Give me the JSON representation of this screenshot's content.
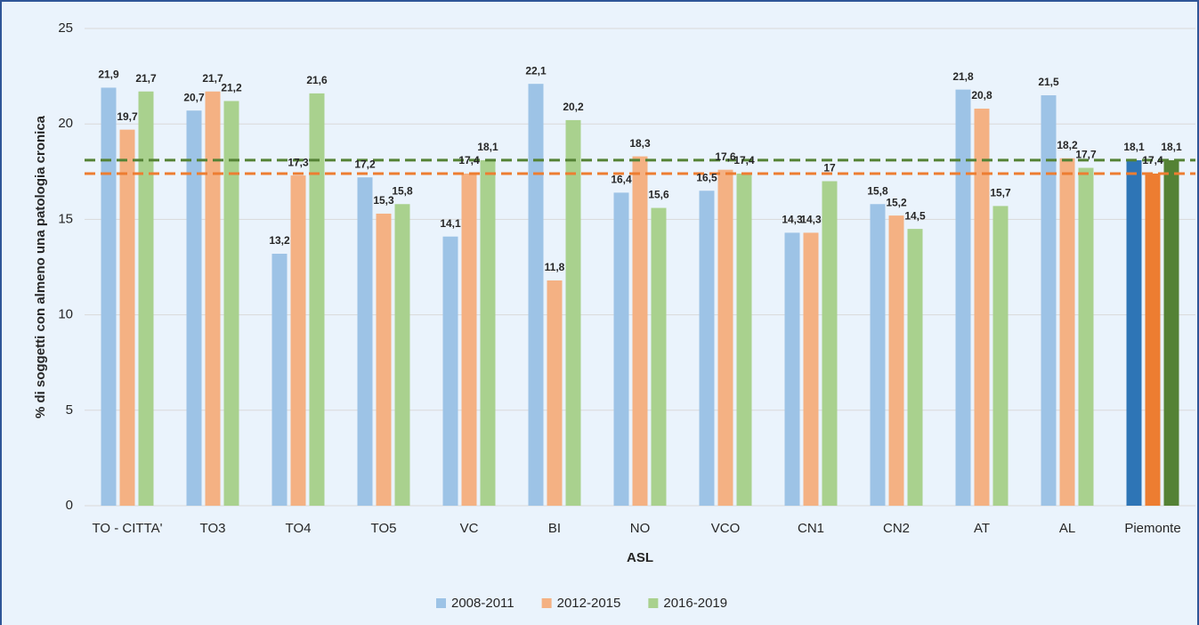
{
  "chart_data": {
    "type": "bar",
    "x_label": "ASL",
    "y_label": "% di soggetti con almeno una patologia cronica",
    "categories": [
      "TO - CITTA'",
      "TO3",
      "TO4",
      "TO5",
      "VC",
      "BI",
      "NO",
      "VCO",
      "CN1",
      "CN2",
      "AT",
      "AL",
      "Piemonte"
    ],
    "series": [
      {
        "name": "2008-2011",
        "color": "#9dc3e6",
        "colors": [
          "#9dc3e6",
          "#9dc3e6",
          "#9dc3e6",
          "#9dc3e6",
          "#9dc3e6",
          "#9dc3e6",
          "#9dc3e6",
          "#9dc3e6",
          "#9dc3e6",
          "#9dc3e6",
          "#9dc3e6",
          "#9dc3e6",
          "#2e75b6"
        ],
        "values": [
          21.9,
          20.7,
          13.2,
          17.2,
          14.1,
          22.1,
          16.4,
          16.5,
          14.3,
          15.8,
          21.8,
          21.5,
          18.1
        ],
        "value_labels": [
          "21,9",
          "20,7",
          "13,2",
          "17,2",
          "14,1",
          "22,1",
          "16,4",
          "16,5",
          "14,3",
          "15,8",
          "21,8",
          "21,5",
          "18,1"
        ]
      },
      {
        "name": "2012-2015",
        "color": "#f4b183",
        "colors": [
          "#f4b183",
          "#f4b183",
          "#f4b183",
          "#f4b183",
          "#f4b183",
          "#f4b183",
          "#f4b183",
          "#f4b183",
          "#f4b183",
          "#f4b183",
          "#f4b183",
          "#f4b183",
          "#ed7d31"
        ],
        "values": [
          19.7,
          21.7,
          17.3,
          15.3,
          17.4,
          11.8,
          18.3,
          17.6,
          14.3,
          15.2,
          20.8,
          18.2,
          17.4
        ],
        "value_labels": [
          "19,7",
          "21,7",
          "17,3",
          "15,3",
          "17,4",
          "11,8",
          "18,3",
          "17,6",
          "14,3",
          "15,2",
          "20,8",
          "18,2",
          "17,4"
        ]
      },
      {
        "name": "2016-2019",
        "color": "#a9d18e",
        "colors": [
          "#a9d18e",
          "#a9d18e",
          "#a9d18e",
          "#a9d18e",
          "#a9d18e",
          "#a9d18e",
          "#a9d18e",
          "#a9d18e",
          "#a9d18e",
          "#a9d18e",
          "#a9d18e",
          "#a9d18e",
          "#548235"
        ],
        "values": [
          21.7,
          21.2,
          21.6,
          15.8,
          18.1,
          20.2,
          15.6,
          17.4,
          17,
          14.5,
          15.7,
          17.7,
          18.1
        ],
        "value_labels": [
          "21,7",
          "21,2",
          "21,6",
          "15,8",
          "18,1",
          "20,2",
          "15,6",
          "17,4",
          "17",
          "14,5",
          "15,7",
          "17,7",
          "18,1"
        ]
      }
    ],
    "reference_lines": [
      {
        "value": 18.1,
        "color": "#548235"
      },
      {
        "value": 17.4,
        "color": "#ed7d31"
      }
    ],
    "ylim": [
      0,
      25
    ],
    "yticks": [
      0,
      5,
      10,
      15,
      20,
      25
    ],
    "grid": true,
    "legend": "bottom"
  }
}
